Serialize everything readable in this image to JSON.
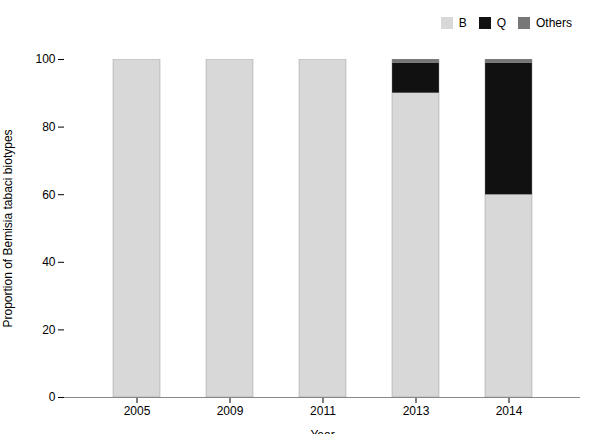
{
  "chart_data": {
    "type": "bar",
    "stacked": true,
    "categories": [
      "2005",
      "2009",
      "2011",
      "2013",
      "2014"
    ],
    "series": [
      {
        "name": "B",
        "color": "#d8d8d8",
        "values": [
          100,
          100,
          100,
          90,
          60
        ]
      },
      {
        "name": "Q",
        "color": "#111111",
        "values": [
          0,
          0,
          0,
          9,
          39
        ]
      },
      {
        "name": "Others",
        "color": "#777777",
        "values": [
          0,
          0,
          0,
          1,
          1
        ]
      }
    ],
    "xlabel": "Year",
    "ylabel": "Proportion of Bemisia tabaci biotypes",
    "ylim": [
      0,
      100
    ],
    "yticks": [
      0,
      20,
      40,
      60,
      80,
      100
    ],
    "grid": false,
    "legend": "upper right"
  }
}
